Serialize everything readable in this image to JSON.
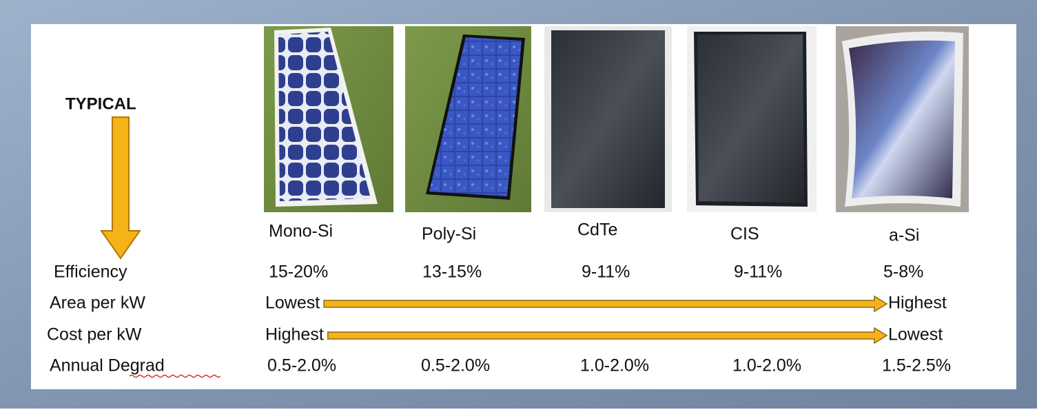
{
  "label": "TYPICAL",
  "technologies": [
    "Mono-Si",
    "Poly-Si",
    "CdTe",
    "CIS",
    "a-Si"
  ],
  "rows": [
    {
      "label": "Efficiency",
      "values": [
        "15-20%",
        "13-15%",
        "9-11%",
        "9-11%",
        "5-8%"
      ]
    },
    {
      "label": "Area per kW",
      "from": "Lowest",
      "to": "Highest"
    },
    {
      "label": "Cost per kW",
      "from": "Highest",
      "to": "Lowest"
    },
    {
      "label": "Annual Degrad",
      "values": [
        "0.5-2.0%",
        "0.5-2.0%",
        "1.0-2.0%",
        "1.0-2.0%",
        "1.5-2.5%"
      ]
    }
  ]
}
